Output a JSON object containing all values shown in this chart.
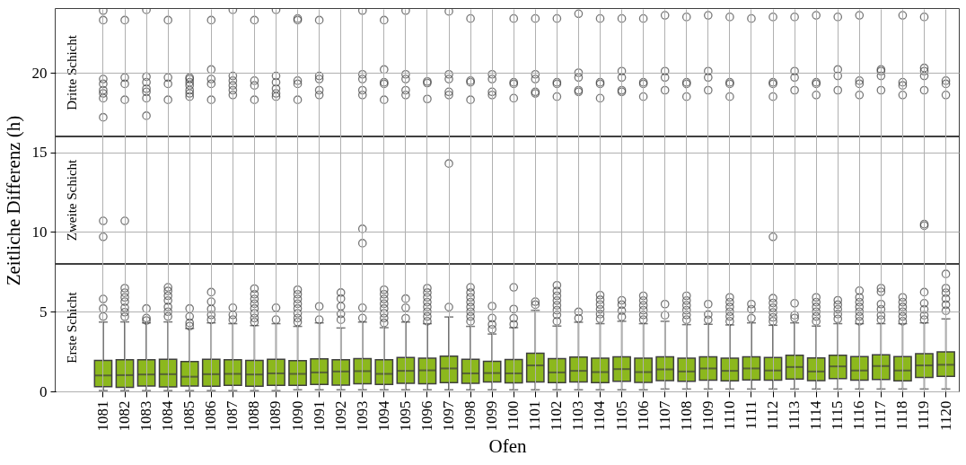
{
  "chart_data": {
    "type": "box",
    "xlabel": "Ofen",
    "ylabel": "Zeitliche Differenz (h)",
    "color": "#8cb81d",
    "ylim": [
      0,
      24
    ],
    "yticks": [
      0,
      5,
      10,
      15,
      20
    ],
    "grid": true,
    "categories": [
      "1081",
      "1082",
      "1083",
      "1084",
      "1085",
      "1086",
      "1087",
      "1088",
      "1089",
      "1090",
      "1091",
      "1092",
      "1093",
      "1094",
      "1095",
      "1096",
      "1097",
      "1098",
      "1099",
      "1100",
      "1101",
      "1102",
      "1103",
      "1104",
      "1105",
      "1106",
      "1107",
      "1108",
      "1109",
      "1110",
      "1111",
      "1112",
      "1113",
      "1114",
      "1115",
      "1116",
      "1117",
      "1118",
      "1119",
      "1120"
    ],
    "ref_lines": [
      {
        "axis": "y",
        "value": 8,
        "color": "#000000"
      },
      {
        "axis": "y",
        "value": 16,
        "color": "#000000"
      }
    ],
    "bands": [
      {
        "axis": "y",
        "from": 0,
        "to": 8,
        "label": "Erste Schicht",
        "color": "#ffffff"
      },
      {
        "axis": "y",
        "from": 8,
        "to": 16,
        "label": "Zweite Schicht",
        "color": "#ffffff"
      },
      {
        "axis": "y",
        "from": 16,
        "to": 24,
        "label": "Dritte Schicht",
        "color": "#ffffff"
      }
    ],
    "boxes": [
      {
        "low": 0.05,
        "q1": 0.3,
        "median": 1.0,
        "q3": 1.95,
        "high": 4.35,
        "outliers": [
          4.7,
          5.2,
          5.8,
          10.7,
          9.7,
          23.9,
          23.3,
          19.6,
          19.3,
          18.9,
          18.7,
          18.4,
          17.2
        ]
      },
      {
        "low": 0.05,
        "q1": 0.25,
        "median": 1.02,
        "q3": 1.98,
        "high": 4.36,
        "outliers": [
          6.48,
          6.19,
          5.9,
          5.63,
          5.25,
          4.97,
          4.69,
          10.7,
          23.3,
          19.7,
          19.3,
          18.3
        ]
      },
      {
        "low": 0.05,
        "q1": 0.34,
        "median": 1.06,
        "q3": 1.98,
        "high": 4.3,
        "outliers": [
          5.2,
          4.6,
          4.45,
          23.95,
          19.75,
          19.4,
          19.0,
          18.8,
          18.4,
          17.3
        ]
      },
      {
        "low": 0.05,
        "q1": 0.28,
        "median": 1.08,
        "q3": 2.02,
        "high": 4.36,
        "outliers": [
          6.53,
          6.3,
          6.0,
          5.7,
          5.3,
          5.0,
          4.7,
          23.3,
          19.7,
          19.3,
          18.3
        ]
      },
      {
        "low": 0.05,
        "q1": 0.34,
        "median": 0.92,
        "q3": 1.87,
        "high": 3.95,
        "outliers": [
          5.2,
          4.7,
          4.3,
          4.1,
          19.7,
          19.6,
          19.4,
          19.2,
          18.9,
          18.7,
          18.5
        ]
      },
      {
        "low": 0.05,
        "q1": 0.32,
        "median": 1.08,
        "q3": 2.02,
        "high": 4.3,
        "outliers": [
          6.23,
          5.63,
          5.17,
          4.8,
          4.5,
          23.3,
          20.2,
          19.6,
          19.3,
          18.3
        ]
      },
      {
        "low": 0.05,
        "q1": 0.38,
        "median": 1.1,
        "q3": 1.98,
        "high": 4.25,
        "outliers": [
          5.25,
          4.8,
          4.5,
          23.95,
          19.8,
          19.5,
          19.2,
          18.9,
          18.6
        ]
      },
      {
        "low": 0.05,
        "q1": 0.32,
        "median": 1.06,
        "q3": 1.94,
        "high": 4.13,
        "outliers": [
          6.45,
          6.1,
          5.8,
          5.5,
          5.2,
          4.9,
          4.6,
          4.35,
          23.3,
          19.5,
          19.2,
          18.3
        ]
      },
      {
        "low": 0.05,
        "q1": 0.38,
        "median": 1.13,
        "q3": 2.02,
        "high": 4.25,
        "outliers": [
          5.25,
          4.5,
          23.95,
          19.8,
          19.4,
          19.0,
          18.7,
          18.5
        ]
      },
      {
        "low": 0.1,
        "q1": 0.38,
        "median": 1.1,
        "q3": 1.93,
        "high": 4.08,
        "outliers": [
          6.38,
          6.1,
          5.8,
          5.5,
          5.2,
          4.9,
          4.6,
          4.35,
          23.4,
          23.3,
          19.5,
          19.3,
          18.3
        ]
      },
      {
        "low": 0.1,
        "q1": 0.44,
        "median": 1.19,
        "q3": 2.04,
        "high": 4.3,
        "outliers": [
          5.34,
          4.5,
          23.3,
          19.8,
          19.6,
          18.9,
          18.6
        ]
      },
      {
        "low": 0.1,
        "q1": 0.4,
        "median": 1.25,
        "q3": 1.98,
        "high": 3.98,
        "outliers": [
          6.2,
          5.82,
          5.34,
          4.87,
          4.5
        ]
      },
      {
        "low": 0.1,
        "q1": 0.48,
        "median": 1.27,
        "q3": 2.06,
        "high": 4.35,
        "outliers": [
          5.25,
          4.6,
          10.2,
          9.3,
          23.9,
          19.9,
          19.6,
          18.9,
          18.6
        ]
      },
      {
        "low": 0.1,
        "q1": 0.44,
        "median": 1.1,
        "q3": 1.98,
        "high": 4.0,
        "outliers": [
          6.38,
          6.1,
          5.8,
          5.5,
          5.2,
          4.9,
          4.6,
          4.3,
          23.3,
          20.2,
          19.4,
          19.3,
          18.3
        ]
      },
      {
        "low": 0.1,
        "q1": 0.51,
        "median": 1.29,
        "q3": 2.12,
        "high": 4.35,
        "outliers": [
          5.82,
          5.25,
          4.59,
          23.9,
          19.9,
          19.6,
          18.9,
          18.6
        ]
      },
      {
        "low": 0.1,
        "q1": 0.48,
        "median": 1.32,
        "q3": 2.08,
        "high": 4.25,
        "outliers": [
          6.48,
          6.2,
          5.9,
          5.6,
          5.3,
          5.0,
          4.7,
          4.4,
          19.45,
          19.35,
          18.35
        ]
      },
      {
        "low": 0.1,
        "q1": 0.55,
        "median": 1.44,
        "q3": 2.21,
        "high": 4.67,
        "outliers": [
          5.29,
          14.3,
          23.85,
          19.9,
          19.6,
          18.8,
          18.6
        ]
      },
      {
        "low": 0.1,
        "q1": 0.51,
        "median": 1.13,
        "q3": 2.02,
        "high": 4.08,
        "outliers": [
          6.53,
          6.2,
          5.9,
          5.6,
          5.3,
          5.0,
          4.7,
          4.4,
          23.4,
          19.5,
          19.4,
          18.3
        ]
      },
      {
        "low": 0.1,
        "q1": 0.59,
        "median": 1.15,
        "q3": 1.89,
        "high": 3.6,
        "outliers": [
          5.35,
          4.6,
          4.2,
          3.9,
          19.9,
          19.6,
          18.8,
          18.6
        ]
      },
      {
        "low": 0.1,
        "q1": 0.53,
        "median": 1.13,
        "q3": 2.0,
        "high": 4.0,
        "outliers": [
          6.53,
          5.17,
          4.59,
          4.21,
          23.4,
          19.4,
          19.3,
          18.4
        ]
      },
      {
        "low": 0.1,
        "q1": 0.59,
        "median": 1.63,
        "q3": 2.4,
        "high": 5.09,
        "outliers": [
          5.63,
          5.44,
          23.4,
          19.9,
          19.6,
          18.8,
          18.7
        ]
      },
      {
        "low": 0.1,
        "q1": 0.55,
        "median": 1.19,
        "q3": 2.06,
        "high": 4.1,
        "outliers": [
          6.66,
          6.3,
          6.0,
          5.7,
          5.4,
          5.1,
          4.8,
          4.4,
          23.4,
          19.4,
          19.3,
          18.5
        ]
      },
      {
        "low": 0.1,
        "q1": 0.59,
        "median": 1.29,
        "q3": 2.15,
        "high": 4.34,
        "outliers": [
          4.99,
          4.59,
          23.7,
          20.0,
          19.7,
          18.9,
          18.8
        ]
      },
      {
        "low": 0.1,
        "q1": 0.55,
        "median": 1.21,
        "q3": 2.08,
        "high": 4.25,
        "outliers": [
          6.04,
          5.75,
          5.45,
          5.15,
          4.85,
          4.55,
          23.4,
          19.4,
          19.3,
          18.4
        ]
      },
      {
        "low": 0.1,
        "q1": 0.64,
        "median": 1.4,
        "q3": 2.17,
        "high": 4.4,
        "outliers": [
          5.72,
          5.44,
          5.06,
          4.68,
          23.4,
          20.1,
          19.7,
          18.9,
          18.8
        ]
      },
      {
        "low": 0.1,
        "q1": 0.57,
        "median": 1.21,
        "q3": 2.08,
        "high": 4.25,
        "outliers": [
          6.0,
          5.7,
          5.4,
          5.1,
          4.8,
          4.5,
          23.4,
          19.4,
          19.3,
          18.5
        ]
      },
      {
        "low": 0.15,
        "q1": 0.68,
        "median": 1.38,
        "q3": 2.17,
        "high": 4.4,
        "outliers": [
          5.48,
          4.78,
          23.6,
          20.1,
          19.7,
          18.9
        ]
      },
      {
        "low": 0.15,
        "q1": 0.64,
        "median": 1.25,
        "q3": 2.08,
        "high": 4.19,
        "outliers": [
          6.0,
          5.7,
          5.4,
          5.1,
          4.8,
          4.5,
          23.5,
          19.4,
          19.3,
          18.5
        ]
      },
      {
        "low": 0.15,
        "q1": 0.7,
        "median": 1.44,
        "q3": 2.17,
        "high": 4.21,
        "outliers": [
          5.48,
          4.83,
          4.49,
          23.6,
          20.1,
          19.7,
          18.9
        ]
      },
      {
        "low": 0.15,
        "q1": 0.66,
        "median": 1.29,
        "q3": 2.08,
        "high": 4.17,
        "outliers": [
          5.9,
          5.6,
          5.3,
          5.0,
          4.7,
          4.4,
          23.5,
          19.4,
          19.3,
          18.5
        ]
      },
      {
        "low": 0.15,
        "q1": 0.72,
        "median": 1.44,
        "q3": 2.17,
        "high": 4.3,
        "outliers": [
          5.48,
          5.15,
          4.59,
          23.4
        ]
      },
      {
        "low": 0.15,
        "q1": 0.7,
        "median": 1.31,
        "q3": 2.12,
        "high": 4.15,
        "outliers": [
          5.85,
          5.55,
          5.25,
          4.95,
          4.65,
          4.4,
          9.7,
          23.5,
          19.4,
          19.3,
          18.5
        ]
      },
      {
        "low": 0.15,
        "q1": 0.78,
        "median": 1.53,
        "q3": 2.27,
        "high": 4.3,
        "outliers": [
          5.53,
          4.78,
          4.6,
          23.5,
          20.1,
          19.7,
          18.9
        ]
      },
      {
        "low": 0.15,
        "q1": 0.68,
        "median": 1.25,
        "q3": 2.1,
        "high": 4.1,
        "outliers": [
          5.9,
          5.6,
          5.3,
          5.0,
          4.7,
          4.4,
          23.6,
          19.4,
          19.3,
          18.6
        ]
      },
      {
        "low": 0.15,
        "q1": 0.8,
        "median": 1.57,
        "q3": 2.27,
        "high": 4.25,
        "outliers": [
          5.72,
          5.44,
          5.15,
          4.85,
          4.55,
          23.5,
          20.2,
          19.8,
          18.9
        ]
      },
      {
        "low": 0.15,
        "q1": 0.7,
        "median": 1.31,
        "q3": 2.19,
        "high": 4.25,
        "outliers": [
          6.32,
          5.9,
          5.6,
          5.3,
          5.0,
          4.7,
          4.4,
          23.6,
          19.5,
          19.3,
          18.6
        ]
      },
      {
        "low": 0.15,
        "q1": 0.74,
        "median": 1.59,
        "q3": 2.29,
        "high": 4.25,
        "outliers": [
          6.48,
          6.25,
          5.48,
          5.15,
          4.78,
          4.5,
          20.2,
          20.1,
          19.8,
          18.9
        ]
      },
      {
        "low": 0.15,
        "q1": 0.66,
        "median": 1.31,
        "q3": 2.19,
        "high": 4.25,
        "outliers": [
          5.9,
          5.6,
          5.3,
          5.0,
          4.7,
          4.4,
          23.6,
          19.4,
          19.2,
          18.6
        ]
      },
      {
        "low": 0.15,
        "q1": 0.87,
        "median": 1.63,
        "q3": 2.36,
        "high": 4.3,
        "outliers": [
          6.23,
          5.53,
          5.15,
          4.78,
          4.5,
          10.5,
          10.4,
          23.5,
          20.3,
          20.1,
          19.8,
          18.9
        ]
      },
      {
        "low": 0.15,
        "q1": 0.95,
        "median": 1.67,
        "q3": 2.48,
        "high": 4.55,
        "outliers": [
          7.37,
          6.48,
          6.19,
          5.82,
          5.44,
          5.06,
          19.5,
          19.3,
          18.6
        ]
      }
    ]
  }
}
